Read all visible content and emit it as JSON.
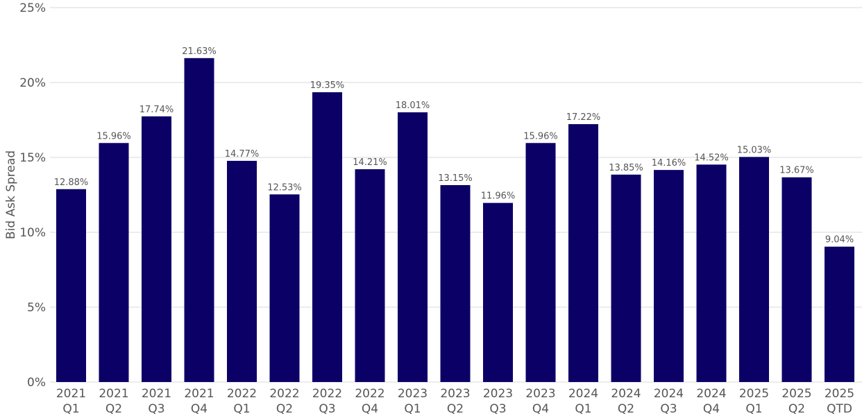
{
  "chart_data": {
    "type": "bar",
    "title": "",
    "xlabel": "",
    "ylabel": "Bid Ask Spread",
    "ylim": [
      0,
      25
    ],
    "yticks": [
      "0%",
      "5%",
      "10%",
      "15%",
      "20%",
      "25%"
    ],
    "ytick_values": [
      0,
      5,
      10,
      15,
      20,
      25
    ],
    "grid": true,
    "bar_color": "#0b0066",
    "categories": [
      [
        "2021",
        "Q1"
      ],
      [
        "2021",
        "Q2"
      ],
      [
        "2021",
        "Q3"
      ],
      [
        "2021",
        "Q4"
      ],
      [
        "2022",
        "Q1"
      ],
      [
        "2022",
        "Q2"
      ],
      [
        "2022",
        "Q3"
      ],
      [
        "2022",
        "Q4"
      ],
      [
        "2023",
        "Q1"
      ],
      [
        "2023",
        "Q2"
      ],
      [
        "2023",
        "Q3"
      ],
      [
        "2023",
        "Q4"
      ],
      [
        "2024",
        "Q1"
      ],
      [
        "2024",
        "Q2"
      ],
      [
        "2024",
        "Q3"
      ],
      [
        "2024",
        "Q4"
      ],
      [
        "2025",
        "Q1"
      ],
      [
        "2025",
        "Q2"
      ],
      [
        "2025",
        "QTD"
      ]
    ],
    "values": [
      12.88,
      15.96,
      17.74,
      21.63,
      14.77,
      12.53,
      19.35,
      14.21,
      18.01,
      13.15,
      11.96,
      15.96,
      17.22,
      13.85,
      14.16,
      14.52,
      15.03,
      13.67,
      9.04
    ],
    "data_labels": [
      "12.88%",
      "15.96%",
      "17.74%",
      "21.63%",
      "14.77%",
      "12.53%",
      "19.35%",
      "14.21%",
      "18.01%",
      "13.15%",
      "11.96%",
      "15.96%",
      "17.22%",
      "13.85%",
      "14.16%",
      "14.52%",
      "15.03%",
      "13.67%",
      "9.04%"
    ]
  }
}
